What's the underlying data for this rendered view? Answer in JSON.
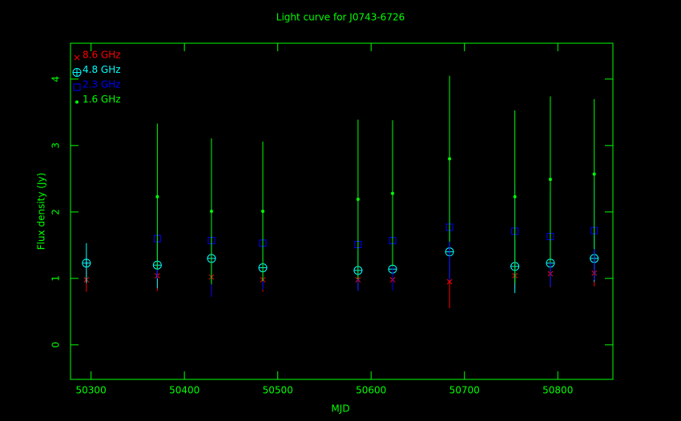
{
  "chart_data": {
    "type": "errorbar",
    "title": "Light curve for J0743-6726",
    "x_label": "MJD",
    "y_label": "Flux density (Jy)",
    "x": [
      50295,
      50371,
      50429,
      50484,
      50586,
      50623,
      50684,
      50754,
      50792,
      50839
    ],
    "xlim": [
      50278,
      50859
    ],
    "ylim": [
      -0.52,
      4.54
    ],
    "xticks": [
      50300,
      50400,
      50500,
      50600,
      50700,
      50800
    ],
    "yticks": [
      0,
      1,
      2,
      3,
      4
    ],
    "axis_color": "#00ff00",
    "legend": "upper left",
    "series": [
      {
        "name": "8.6 GHz",
        "color": "#ff0000",
        "marker": "x",
        "values": [
          0.98,
          1.04,
          1.02,
          0.98,
          0.98,
          0.98,
          0.95,
          1.04,
          1.07,
          1.08
        ],
        "errors": [
          0.18,
          0.23,
          0.25,
          0.18,
          0.15,
          0.15,
          0.4,
          0.18,
          0.2,
          0.2
        ]
      },
      {
        "name": "4.8 GHz",
        "color": "#00ffff",
        "marker": "circle-plus",
        "values": [
          1.23,
          1.2,
          1.3,
          1.16,
          1.12,
          1.14,
          1.4,
          1.18,
          1.23,
          1.3
        ],
        "errors": [
          0.3,
          0.35,
          0.35,
          0.3,
          0.3,
          0.3,
          0.4,
          0.4,
          0.35,
          0.35
        ]
      },
      {
        "name": "2.3 GHz",
        "color": "#0000ff",
        "marker": "square",
        "values": [
          null,
          1.6,
          1.57,
          1.53,
          1.51,
          1.57,
          1.77,
          1.71,
          1.63,
          1.72
        ],
        "errors": [
          null,
          0.6,
          0.85,
          0.7,
          0.7,
          0.75,
          0.8,
          0.7,
          0.75,
          0.75
        ]
      },
      {
        "name": "1.6 GHz",
        "color": "#00ff00",
        "marker": "dot",
        "values": [
          null,
          2.23,
          2.01,
          2.01,
          2.19,
          2.28,
          2.8,
          2.23,
          2.49,
          2.57
        ],
        "errors": [
          null,
          1.1,
          1.1,
          1.05,
          1.2,
          1.1,
          1.25,
          1.3,
          1.25,
          1.13
        ]
      }
    ]
  }
}
